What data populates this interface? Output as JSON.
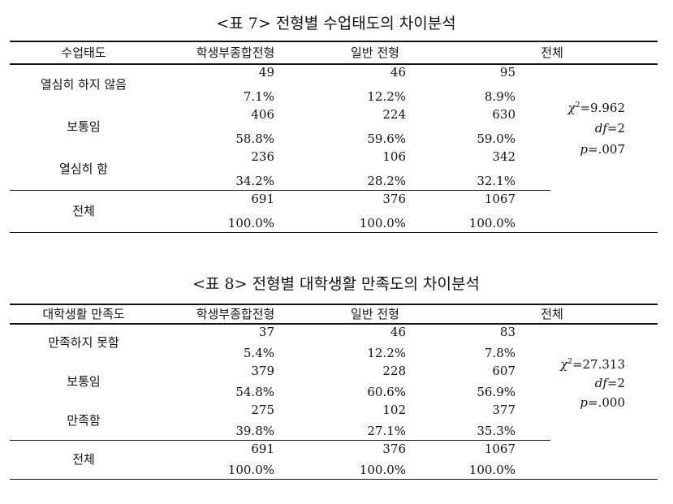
{
  "tables": [
    {
      "title": "<표 7> 전형별 수업태도의 차이분석",
      "headers": [
        "수업태도",
        "학생부종합전형",
        "일반 전형",
        "전체"
      ],
      "rows": [
        {
          "label": "열심히 하지 않음",
          "counts": [
            49,
            46,
            95
          ],
          "percents": [
            "7.1%",
            "12.2%",
            "8.9%"
          ]
        },
        {
          "label": "보통임",
          "counts": [
            406,
            224,
            630
          ],
          "percents": [
            "58.8%",
            "59.6%",
            "59.0%"
          ]
        },
        {
          "label": "열심히 함",
          "counts": [
            236,
            106,
            342
          ],
          "percents": [
            "34.2%",
            "28.2%",
            "32.1%"
          ]
        },
        {
          "label": "전체",
          "counts": [
            691,
            376,
            1067
          ],
          "percents": [
            "100.0%",
            "100.0%",
            "100.0%"
          ]
        }
      ],
      "stats": {
        "chi_symbol": "χ",
        "chi_sup": "2",
        "chi_value": "=9.962",
        "df_symbol": "df",
        "df_value": "=2",
        "p_symbol": "p=",
        "p_value": ".007"
      }
    },
    {
      "title": "<표 8> 전형별 대학생활 만족도의 차이분석",
      "headers": [
        "대학생활 만족도",
        "학생부종합전형",
        "일반 전형",
        "전체"
      ],
      "rows": [
        {
          "label": "만족하지 못함",
          "counts": [
            37,
            46,
            83
          ],
          "percents": [
            "5.4%",
            "12.2%",
            "7.8%"
          ]
        },
        {
          "label": "보통임",
          "counts": [
            379,
            228,
            607
          ],
          "percents": [
            "54.8%",
            "60.6%",
            "56.9%"
          ]
        },
        {
          "label": "만족함",
          "counts": [
            275,
            102,
            377
          ],
          "percents": [
            "39.8%",
            "27.1%",
            "35.3%"
          ]
        },
        {
          "label": "전체",
          "counts": [
            691,
            376,
            1067
          ],
          "percents": [
            "100.0%",
            "100.0%",
            "100.0%"
          ]
        }
      ],
      "stats": {
        "chi_symbol": "χ",
        "chi_sup": "2",
        "chi_value": "=27.313",
        "df_symbol": "df",
        "df_value": "=2",
        "p_symbol": "p=",
        "p_value": ".000"
      }
    }
  ]
}
